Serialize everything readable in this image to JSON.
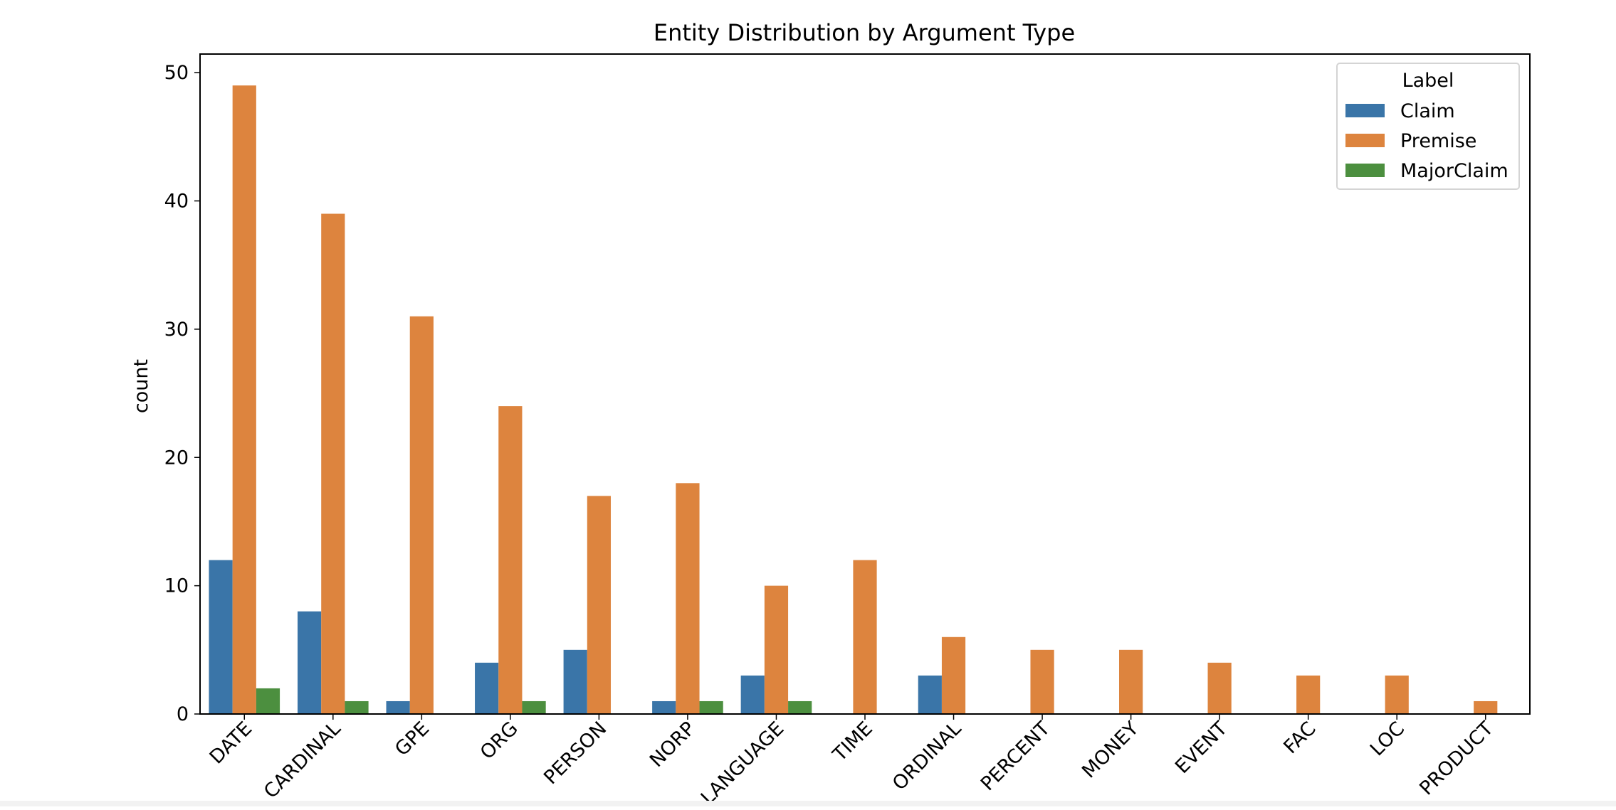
{
  "chart_data": {
    "type": "bar",
    "title": "Entity Distribution by Argument Type",
    "xlabel": "",
    "ylabel": "count",
    "ylim": [
      0,
      51.45
    ],
    "yticks": [
      0,
      10,
      20,
      30,
      40,
      50
    ],
    "grid": false,
    "legend_title": "Label",
    "legend_placement": "top-right",
    "categories": [
      "DATE",
      "CARDINAL",
      "GPE",
      "ORG",
      "PERSON",
      "NORP",
      "LANGUAGE",
      "TIME",
      "ORDINAL",
      "PERCENT",
      "MONEY",
      "EVENT",
      "FAC",
      "LOC",
      "PRODUCT"
    ],
    "series": [
      {
        "name": "Claim",
        "color": "#3a75a8",
        "values": [
          12,
          8,
          1,
          4,
          5,
          1,
          3,
          0,
          3,
          0,
          0,
          0,
          0,
          0,
          0
        ]
      },
      {
        "name": "Premise",
        "color": "#dd843e",
        "values": [
          49,
          39,
          31,
          24,
          17,
          18,
          10,
          12,
          6,
          5,
          5,
          4,
          3,
          3,
          1
        ]
      },
      {
        "name": "MajorClaim",
        "color": "#4c8f3f",
        "values": [
          2,
          1,
          0,
          1,
          0,
          1,
          1,
          0,
          0,
          0,
          0,
          0,
          0,
          0,
          0
        ]
      }
    ]
  }
}
